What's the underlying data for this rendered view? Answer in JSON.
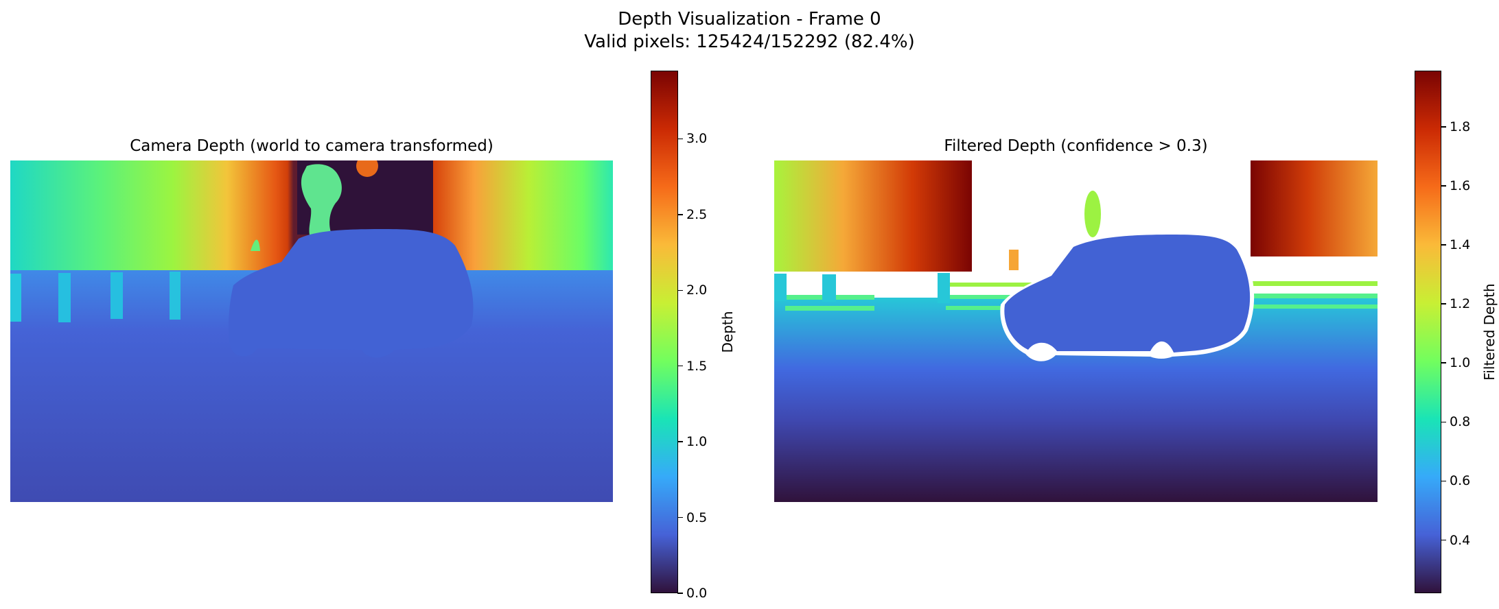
{
  "figure": {
    "suptitle_line1": "Depth Visualization - Frame 0",
    "suptitle_line2": "Valid pixels: 125424/152292 (82.4%)"
  },
  "colormap": [
    "#30123b",
    "#4662d7",
    "#36aaf9",
    "#1ae4b6",
    "#72fe5e",
    "#c8ef34",
    "#faba39",
    "#f66b19",
    "#cb2a04",
    "#7a0403"
  ],
  "chart_data": [
    {
      "type": "heatmap",
      "title": "Camera Depth (world to camera transformed)",
      "colorbar_label": "Depth",
      "colorbar_range": [
        0.0,
        3.45
      ],
      "colorbar_ticks": [
        0.0,
        0.5,
        1.0,
        1.5,
        2.0,
        2.5,
        3.0
      ],
      "colorbar_tick_labels": [
        "0.0",
        "0.5",
        "1.0",
        "1.5",
        "2.0",
        "2.5",
        "3.0"
      ],
      "axes": "off"
    },
    {
      "type": "heatmap",
      "title": "Filtered Depth (confidence > 0.3)",
      "colorbar_label": "Filtered Depth",
      "colorbar_range": [
        0.22,
        1.99
      ],
      "colorbar_ticks": [
        0.4,
        0.6,
        0.8,
        1.0,
        1.2,
        1.4,
        1.6,
        1.8
      ],
      "colorbar_tick_labels": [
        "0.4",
        "0.6",
        "0.8",
        "1.0",
        "1.2",
        "1.4",
        "1.6",
        "1.8"
      ],
      "axes": "off"
    }
  ]
}
